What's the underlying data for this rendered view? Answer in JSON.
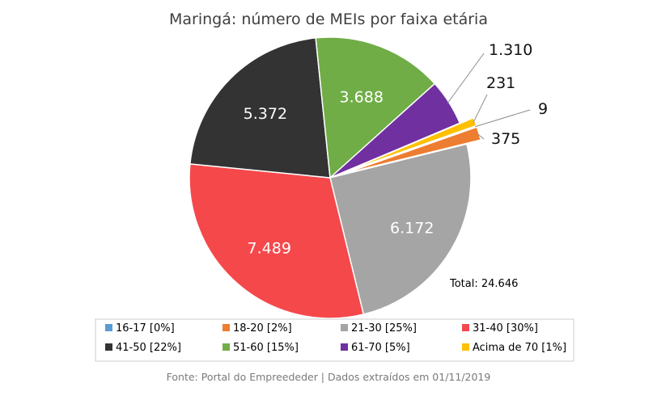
{
  "chart_data": {
    "type": "pie",
    "title": "Maringá: número de MEIs por faixa etária",
    "total_label": "Total: 24.646",
    "source": "Fonte: Portal do Empreededer | Dados extraídos em 01/11/2019",
    "slices": [
      {
        "label": "16-17 [0%]",
        "value": 9,
        "display": "9",
        "color": "#5b9bd5"
      },
      {
        "label": "18-20 [2%]",
        "value": 375,
        "display": "375",
        "color": "#ed7d31"
      },
      {
        "label": "21-30 [25%]",
        "value": 6172,
        "display": "6.172",
        "color": "#a5a5a5"
      },
      {
        "label": "31-40 [30%]",
        "value": 7489,
        "display": "7.489",
        "color": "#f5484b"
      },
      {
        "label": "41-50 [22%]",
        "value": 5372,
        "display": "5.372",
        "color": "#333333"
      },
      {
        "label": "51-60 [15%]",
        "value": 3688,
        "display": "3.688",
        "color": "#70ad47"
      },
      {
        "label": "61-70 [5%]",
        "value": 1310,
        "display": "1.310",
        "color": "#7030a0"
      },
      {
        "label": "Acima de 70 [1%]",
        "value": 231,
        "display": "231",
        "color": "#ffc000"
      }
    ]
  }
}
